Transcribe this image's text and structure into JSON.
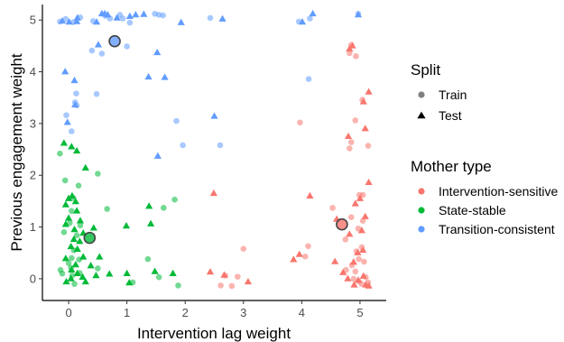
{
  "chart_data": {
    "type": "scatter",
    "xlabel": "Intervention lag weight",
    "ylabel": "Previous engagement weight",
    "xlim": [
      -0.45,
      5.45
    ],
    "ylim": [
      -0.42,
      5.3
    ],
    "x_ticks": [
      0,
      1,
      2,
      3,
      4,
      5
    ],
    "y_ticks": [
      0,
      1,
      2,
      3,
      4,
      5
    ],
    "grid": false,
    "legend_placement": "right",
    "legends": [
      {
        "title": "Split",
        "entries": [
          {
            "label": "Train",
            "shape": "circle"
          },
          {
            "label": "Test",
            "shape": "triangle"
          }
        ]
      },
      {
        "title": "Mother type",
        "entries": [
          {
            "label": "Intervention-sensitive",
            "color": "#F8766D"
          },
          {
            "label": "State-stable",
            "color": "#00BA38"
          },
          {
            "label": "Transition-consistent",
            "color": "#619CFF"
          }
        ]
      }
    ],
    "centroids": [
      {
        "group": "Transition-consistent",
        "x": 0.79,
        "y": 4.59,
        "color": "#619CFF"
      },
      {
        "group": "State-stable",
        "x": 0.36,
        "y": 0.79,
        "color": "#00BA38"
      },
      {
        "group": "Intervention-sensitive",
        "x": 4.69,
        "y": 1.05,
        "color": "#F8766D"
      }
    ],
    "series": [
      {
        "name": "Transition-consistent",
        "color": "#619CFF",
        "train": [
          [
            -0.15,
            4.97
          ],
          [
            -0.05,
            5.02
          ],
          [
            0.08,
            4.96
          ],
          [
            0.2,
            5.05
          ],
          [
            0.42,
            4.98
          ],
          [
            0.63,
            5.08
          ],
          [
            0.71,
            5.03
          ],
          [
            0.88,
            5.1
          ],
          [
            0.93,
            5.03
          ],
          [
            1.05,
            4.95
          ],
          [
            1.48,
            5.12
          ],
          [
            1.55,
            5.1
          ],
          [
            1.62,
            5.09
          ],
          [
            2.43,
            5.04
          ],
          [
            3.95,
            4.97
          ],
          [
            4.14,
            5.03
          ],
          [
            4.97,
            5.12
          ],
          [
            0.4,
            4.41
          ],
          [
            0.57,
            4.35
          ],
          [
            1.0,
            4.49
          ],
          [
            0.13,
            3.58
          ],
          [
            0.48,
            3.57
          ],
          [
            0.11,
            3.41
          ],
          [
            0.14,
            3.35
          ],
          [
            -0.04,
            3.16
          ],
          [
            0.05,
            2.85
          ],
          [
            1.85,
            3.05
          ],
          [
            1.96,
            2.58
          ],
          [
            2.6,
            2.58
          ],
          [
            4.12,
            3.86
          ]
        ],
        "test": [
          [
            -0.11,
            4.98
          ],
          [
            0.01,
            4.96
          ],
          [
            0.14,
            4.97
          ],
          [
            0.15,
            5.04
          ],
          [
            0.48,
            4.96
          ],
          [
            0.57,
            5.12
          ],
          [
            0.62,
            5.12
          ],
          [
            0.67,
            5.1
          ],
          [
            0.83,
            5.04
          ],
          [
            1.05,
            5.07
          ],
          [
            1.15,
            5.1
          ],
          [
            1.29,
            5.11
          ],
          [
            1.93,
            4.95
          ],
          [
            2.64,
            5.02
          ],
          [
            4.01,
            4.96
          ],
          [
            4.19,
            5.12
          ],
          [
            4.97,
            5.1
          ],
          [
            0.51,
            4.52
          ],
          [
            1.52,
            4.37
          ],
          [
            1.37,
            3.9
          ],
          [
            1.65,
            3.89
          ],
          [
            -0.06,
            4.0
          ],
          [
            0.1,
            3.83
          ],
          [
            0.11,
            3.36
          ],
          [
            2.5,
            3.14
          ],
          [
            -0.02,
            3.02
          ],
          [
            1.53,
            2.37
          ]
        ]
      },
      {
        "name": "State-stable",
        "color": "#00BA38",
        "train": [
          [
            -0.15,
            2.42
          ],
          [
            -0.06,
            1.9
          ],
          [
            0.17,
            1.8
          ],
          [
            0.08,
            1.56
          ],
          [
            0.05,
            1.31
          ],
          [
            0.5,
            2.03
          ],
          [
            0.66,
            1.35
          ],
          [
            0.02,
            1.08
          ],
          [
            0.2,
            1.03
          ],
          [
            0.14,
            0.84
          ],
          [
            -0.08,
            0.9
          ],
          [
            0.09,
            0.55
          ],
          [
            0.05,
            0.4
          ],
          [
            0.0,
            0.3
          ],
          [
            0.18,
            0.37
          ],
          [
            -0.14,
            0.17
          ],
          [
            0.04,
            0.21
          ],
          [
            -0.11,
            0.1
          ],
          [
            0.06,
            0.06
          ],
          [
            0.19,
            0.11
          ],
          [
            0.1,
            -0.1
          ],
          [
            0.5,
            0.2
          ],
          [
            1.1,
            -0.07
          ],
          [
            1.36,
            0.38
          ],
          [
            1.55,
            0.03
          ],
          [
            1.63,
            1.37
          ],
          [
            1.82,
            1.53
          ],
          [
            1.88,
            -0.13
          ]
        ],
        "test": [
          [
            -0.08,
            2.62
          ],
          [
            0.05,
            2.55
          ],
          [
            0.14,
            2.47
          ],
          [
            0.29,
            2.14
          ],
          [
            0.0,
            1.55
          ],
          [
            0.06,
            1.6
          ],
          [
            0.12,
            1.49
          ],
          [
            -0.05,
            1.43
          ],
          [
            0.14,
            1.31
          ],
          [
            0.0,
            1.17
          ],
          [
            0.2,
            1.12
          ],
          [
            -0.05,
            1.05
          ],
          [
            0.1,
            0.95
          ],
          [
            0.25,
            0.88
          ],
          [
            0.43,
            0.98
          ],
          [
            0.09,
            0.76
          ],
          [
            0.19,
            0.72
          ],
          [
            0.04,
            0.62
          ],
          [
            0.15,
            0.57
          ],
          [
            0.25,
            0.42
          ],
          [
            -0.05,
            0.39
          ],
          [
            0.12,
            0.27
          ],
          [
            0.05,
            0.17
          ],
          [
            0.15,
            0.1
          ],
          [
            0.24,
            0.03
          ],
          [
            0.29,
            -0.06
          ],
          [
            0.38,
            0.25
          ],
          [
            0.47,
            0.06
          ],
          [
            0.53,
            0.42
          ],
          [
            0.7,
            0.09
          ],
          [
            0.99,
            1.02
          ],
          [
            1.0,
            0.1
          ],
          [
            1.04,
            -0.08
          ],
          [
            1.38,
            1.4
          ],
          [
            1.41,
            1.06
          ],
          [
            1.48,
            0.14
          ],
          [
            1.79,
            0.1
          ],
          [
            -0.04,
            -0.06
          ],
          [
            0.04,
            0.0
          ]
        ]
      },
      {
        "name": "Intervention-sensitive",
        "color": "#F8766D",
        "train": [
          [
            4.85,
            4.52
          ],
          [
            4.82,
            4.36
          ],
          [
            4.93,
            4.3
          ],
          [
            5.04,
            3.46
          ],
          [
            4.92,
            3.06
          ],
          [
            3.97,
            3.02
          ],
          [
            4.85,
            2.64
          ],
          [
            4.82,
            2.52
          ],
          [
            5.14,
            2.57
          ],
          [
            5.05,
            1.62
          ],
          [
            4.99,
            1.62
          ],
          [
            4.85,
            1.19
          ],
          [
            4.53,
            1.37
          ],
          [
            5.05,
            1.12
          ],
          [
            4.97,
            0.97
          ],
          [
            4.75,
            0.76
          ],
          [
            5.03,
            0.61
          ],
          [
            4.94,
            0.53
          ],
          [
            4.98,
            0.38
          ],
          [
            5.07,
            0.33
          ],
          [
            4.86,
            0.26
          ],
          [
            4.11,
            0.63
          ],
          [
            4.06,
            0.43
          ],
          [
            4.76,
            0.17
          ],
          [
            4.92,
            0.14
          ],
          [
            5.1,
            0.03
          ],
          [
            5.14,
            -0.07
          ],
          [
            4.89,
            0.0
          ],
          [
            4.98,
            -0.05
          ],
          [
            5.03,
            -0.1
          ],
          [
            2.61,
            -0.13
          ],
          [
            2.8,
            -0.14
          ],
          [
            2.9,
            0.04
          ],
          [
            2.69,
            0.06
          ],
          [
            3.0,
            0.58
          ]
        ],
        "test": [
          [
            4.82,
            4.44
          ],
          [
            4.87,
            4.5
          ],
          [
            5.15,
            3.61
          ],
          [
            5.06,
            3.42
          ],
          [
            5.09,
            2.9
          ],
          [
            4.8,
            2.75
          ],
          [
            5.15,
            1.86
          ],
          [
            5.0,
            1.55
          ],
          [
            4.92,
            1.45
          ],
          [
            4.14,
            1.6
          ],
          [
            2.49,
            1.65
          ],
          [
            5.09,
            1.2
          ],
          [
            4.6,
            1.15
          ],
          [
            5.03,
            0.93
          ],
          [
            4.82,
            0.86
          ],
          [
            5.05,
            0.55
          ],
          [
            4.96,
            0.5
          ],
          [
            4.57,
            0.33
          ],
          [
            4.89,
            0.32
          ],
          [
            4.71,
            0.12
          ],
          [
            3.86,
            0.37
          ],
          [
            3.96,
            0.47
          ],
          [
            4.79,
            0.0
          ],
          [
            4.97,
            -0.03
          ],
          [
            5.06,
            0.05
          ],
          [
            4.9,
            -0.12
          ],
          [
            5.1,
            -0.12
          ],
          [
            5.15,
            -0.14
          ],
          [
            2.43,
            0.13
          ],
          [
            2.67,
            0.07
          ],
          [
            3.08,
            -0.06
          ]
        ]
      }
    ]
  }
}
